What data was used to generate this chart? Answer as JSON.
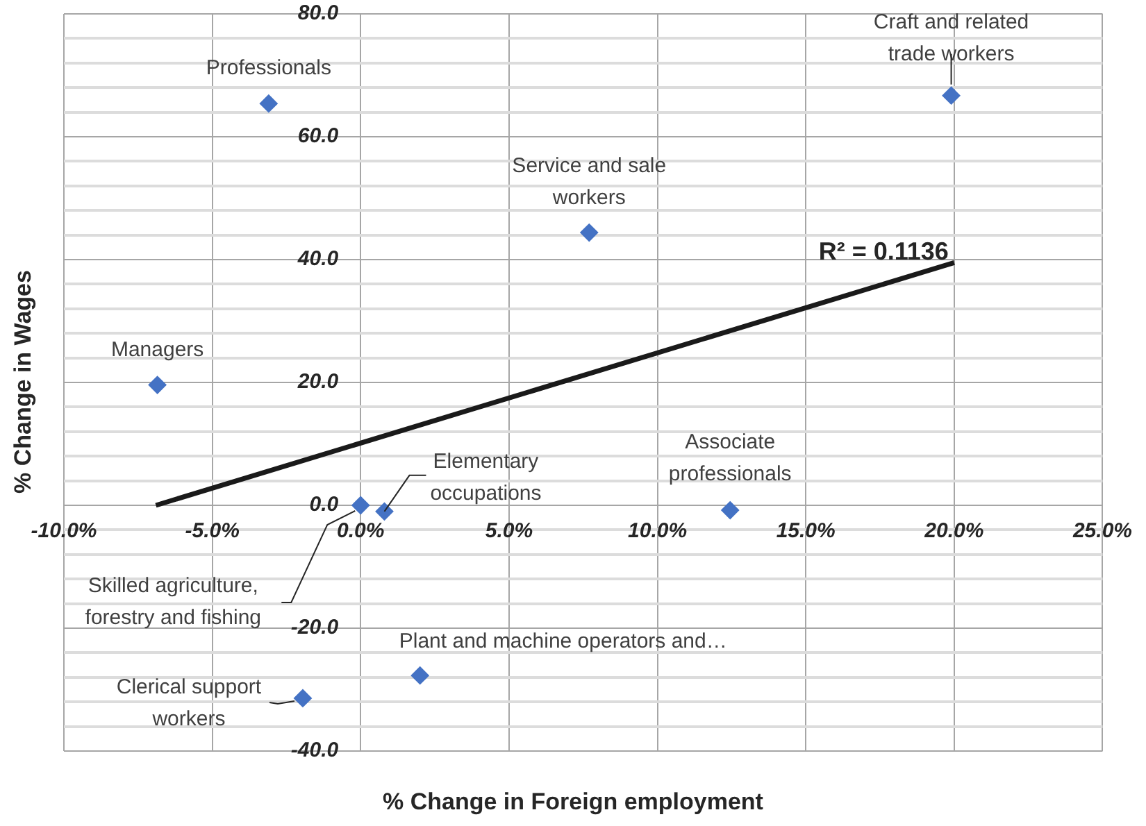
{
  "chart_data": {
    "type": "scatter",
    "xlabel": "% Change in Foreign employment",
    "ylabel": "% Change in Wages",
    "x": [
      -6.85,
      -3.1,
      19.9,
      7.7,
      12.45,
      0.8,
      0.0,
      2.0,
      -1.95
    ],
    "values": [
      19.6,
      65.4,
      66.7,
      44.4,
      -0.8,
      -1.0,
      0.0,
      -27.7,
      -31.4
    ],
    "color": "#4472c4",
    "marker": "diamond",
    "series": [
      {
        "type": "line",
        "x": [
          -6.9,
          20.0
        ],
        "values": [
          0.0,
          39.5
        ],
        "color": "#1a1a1a",
        "line_style": "solid",
        "marker": "none"
      }
    ],
    "xlim": [
      -10,
      25
    ],
    "xticks": [
      {
        "value": -10,
        "label": "-10.0%"
      },
      {
        "value": -5,
        "label": "-5.0%"
      },
      {
        "value": 0,
        "label": "0.0%"
      },
      {
        "value": 5,
        "label": "5.0%"
      },
      {
        "value": 10,
        "label": "10.0%"
      },
      {
        "value": 15,
        "label": "15.0%"
      },
      {
        "value": 20,
        "label": "20.0%"
      },
      {
        "value": 25,
        "label": "25.0%"
      }
    ],
    "ylim": [
      -40,
      80
    ],
    "yticks": [
      {
        "value": -40,
        "label": "-40.0"
      },
      {
        "value": -36,
        "label": null
      },
      {
        "value": -32,
        "label": null
      },
      {
        "value": -28,
        "label": null
      },
      {
        "value": -24,
        "label": null
      },
      {
        "value": -20,
        "label": "-20.0"
      },
      {
        "value": -16,
        "label": null
      },
      {
        "value": -12,
        "label": null
      },
      {
        "value": -8,
        "label": null
      },
      {
        "value": -4,
        "label": null
      },
      {
        "value": 0,
        "label": "0.0"
      },
      {
        "value": 4,
        "label": null
      },
      {
        "value": 8,
        "label": null
      },
      {
        "value": 12,
        "label": null
      },
      {
        "value": 16,
        "label": null
      },
      {
        "value": 20,
        "label": "20.0"
      },
      {
        "value": 24,
        "label": null
      },
      {
        "value": 28,
        "label": null
      },
      {
        "value": 32,
        "label": null
      },
      {
        "value": 36,
        "label": null
      },
      {
        "value": 40,
        "label": "40.0"
      },
      {
        "value": 44,
        "label": null
      },
      {
        "value": 48,
        "label": null
      },
      {
        "value": 52,
        "label": null
      },
      {
        "value": 56,
        "label": null
      },
      {
        "value": 60,
        "label": "60.0"
      },
      {
        "value": 64,
        "label": null
      },
      {
        "value": 68,
        "label": null
      },
      {
        "value": 72,
        "label": null
      },
      {
        "value": 76,
        "label": null
      },
      {
        "value": 80,
        "label": "80.0"
      }
    ],
    "grid": true,
    "legend": false,
    "annotations": [
      {
        "text": "Managers",
        "x": -6.85,
        "y": 19.6
      },
      {
        "text": "Professionals",
        "x": -3.1,
        "y": 65.4
      },
      {
        "text": "Craft and related trade workers",
        "x": 19.9,
        "y": 66.7
      },
      {
        "text": "Service and sale workers",
        "x": 7.7,
        "y": 44.4
      },
      {
        "text": "Associate professionals",
        "x": 12.45,
        "y": -0.8
      },
      {
        "text": "Elementary occupations",
        "x": 0.8,
        "y": -1.0
      },
      {
        "text": "Skilled agriculture, forestry and fishing",
        "x": 0.0,
        "y": 0.0
      },
      {
        "text": "Plant and machine operators and…",
        "x": 2.0,
        "y": -27.7
      },
      {
        "text": "Clerical support workers",
        "x": -1.95,
        "y": -31.4
      },
      {
        "text": "R² = 0.1136",
        "x": 20.0,
        "y": 39.5
      }
    ]
  }
}
